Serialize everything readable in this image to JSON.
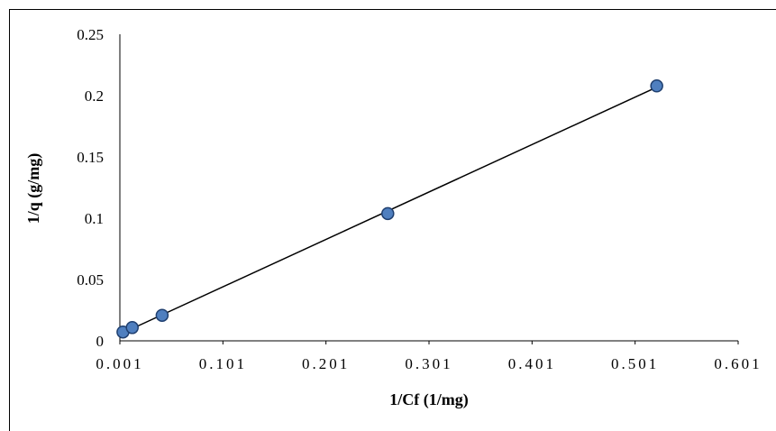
{
  "chart_data": {
    "type": "scatter",
    "title": "",
    "xlabel": "1/Cf (1/mg)",
    "ylabel": "1/q (g/mg)",
    "xlim": [
      0.001,
      0.601
    ],
    "ylim": [
      0,
      0.25
    ],
    "x_ticks": [
      "0.001",
      "0.101",
      "0.201",
      "0.301",
      "0.401",
      "0.501",
      "0.601"
    ],
    "y_ticks": [
      "0",
      "0.05",
      "0.1",
      "0.15",
      "0.2",
      "0.25"
    ],
    "series": [
      {
        "points": [
          {
            "x": 0.004,
            "y": 0.0072
          },
          {
            "x": 0.013,
            "y": 0.0108
          },
          {
            "x": 0.042,
            "y": 0.0208
          },
          {
            "x": 0.261,
            "y": 0.1038
          },
          {
            "x": 0.522,
            "y": 0.2079
          }
        ],
        "marker_fill": "#4f7fbf",
        "marker_edge": "#1f3f6f",
        "trendline": {
          "type": "linear",
          "color": "#000000"
        }
      }
    ],
    "grid": false,
    "legend": "none"
  }
}
